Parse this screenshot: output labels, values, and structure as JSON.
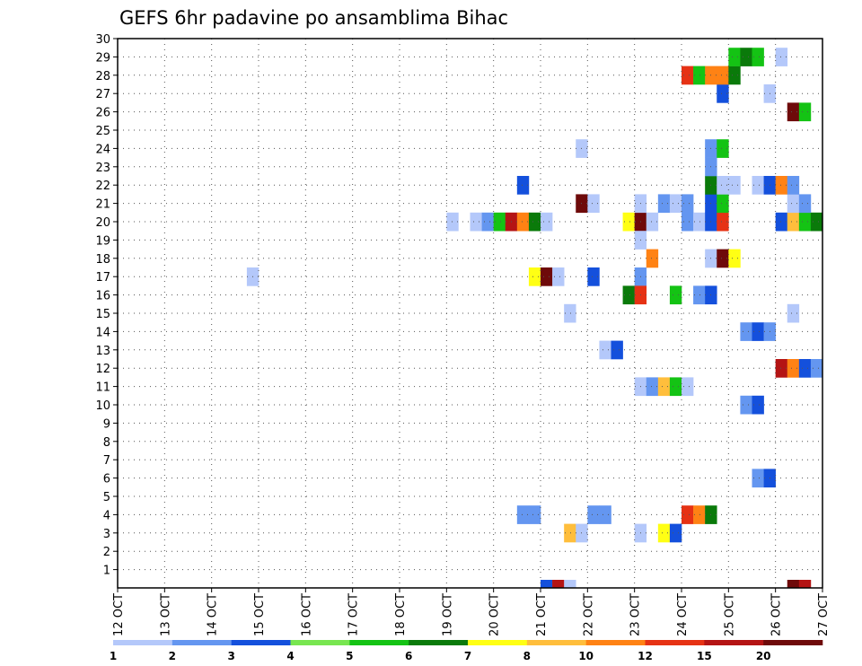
{
  "chart_data": {
    "type": "heatmap",
    "title": "GEFS 6hr padavine po ansamblima Bihac",
    "xlabel": "",
    "ylabel": "",
    "x_ticks": [
      "12 OCT",
      "13 OCT",
      "14 OCT",
      "15 OCT",
      "16 OCT",
      "17 OCT",
      "18 OCT",
      "19 OCT",
      "20 OCT",
      "21 OCT",
      "22 OCT",
      "23 OCT",
      "24 OCT",
      "25 OCT",
      "26 OCT",
      "27 OCT"
    ],
    "y_ticks": [
      1,
      2,
      3,
      4,
      5,
      6,
      7,
      8,
      9,
      10,
      11,
      12,
      13,
      14,
      15,
      16,
      17,
      18,
      19,
      20,
      21,
      22,
      23,
      24,
      25,
      26,
      27,
      28,
      29,
      30
    ],
    "x_unit": "6h steps from 12 OCT 00Z",
    "xlim": [
      0,
      60
    ],
    "ylim": [
      0,
      30
    ],
    "grid": true,
    "colorbar": {
      "labels": [
        "1",
        "2",
        "3",
        "4",
        "5",
        "6",
        "7",
        "8",
        "10",
        "12",
        "15",
        "20"
      ],
      "colors": [
        "#b4c8fa",
        "#6496f0",
        "#1450dc",
        "#78e650",
        "#14c314",
        "#0a7a0a",
        "#ffff14",
        "#ffbe3c",
        "#ff8214",
        "#e63214",
        "#b41414",
        "#6e0a0a"
      ]
    },
    "cells": [
      {
        "x": 11,
        "y": 17,
        "v": 1
      },
      {
        "x": 28,
        "y": 20,
        "v": 1
      },
      {
        "x": 30,
        "y": 20,
        "v": 1
      },
      {
        "x": 31,
        "y": 20,
        "v": 2
      },
      {
        "x": 32,
        "y": 20,
        "v": 5
      },
      {
        "x": 33,
        "y": 20,
        "v": 15
      },
      {
        "x": 34,
        "y": 20,
        "v": 10
      },
      {
        "x": 35,
        "y": 20,
        "v": 6
      },
      {
        "x": 36,
        "y": 20,
        "v": 1
      },
      {
        "x": 43,
        "y": 20,
        "v": 7
      },
      {
        "x": 44,
        "y": 20,
        "v": 20
      },
      {
        "x": 45,
        "y": 20,
        "v": 1
      },
      {
        "x": 48,
        "y": 20,
        "v": 2
      },
      {
        "x": 49,
        "y": 20,
        "v": 1
      },
      {
        "x": 50,
        "y": 20,
        "v": 3
      },
      {
        "x": 51,
        "y": 20,
        "v": 12
      },
      {
        "x": 56,
        "y": 20,
        "v": 3
      },
      {
        "x": 57,
        "y": 20,
        "v": 8
      },
      {
        "x": 58,
        "y": 20,
        "v": 5
      },
      {
        "x": 59,
        "y": 20,
        "v": 6
      },
      {
        "x": 35,
        "y": 17,
        "v": 7
      },
      {
        "x": 36,
        "y": 17,
        "v": 20
      },
      {
        "x": 37,
        "y": 17,
        "v": 1
      },
      {
        "x": 40,
        "y": 17,
        "v": 3
      },
      {
        "x": 44,
        "y": 17,
        "v": 2
      },
      {
        "x": 38,
        "y": 15,
        "v": 1
      },
      {
        "x": 43,
        "y": 16,
        "v": 6
      },
      {
        "x": 44,
        "y": 16,
        "v": 12
      },
      {
        "x": 47,
        "y": 16,
        "v": 5
      },
      {
        "x": 49,
        "y": 16,
        "v": 2
      },
      {
        "x": 50,
        "y": 16,
        "v": 3
      },
      {
        "x": 57,
        "y": 15,
        "v": 1
      },
      {
        "x": 44,
        "y": 19,
        "v": 1
      },
      {
        "x": 45,
        "y": 18,
        "v": 10
      },
      {
        "x": 50,
        "y": 18,
        "v": 1
      },
      {
        "x": 51,
        "y": 18,
        "v": 20
      },
      {
        "x": 52,
        "y": 18,
        "v": 7
      },
      {
        "x": 39,
        "y": 21,
        "v": 20
      },
      {
        "x": 40,
        "y": 21,
        "v": 1
      },
      {
        "x": 44,
        "y": 21,
        "v": 1
      },
      {
        "x": 46,
        "y": 21,
        "v": 2
      },
      {
        "x": 47,
        "y": 21,
        "v": 1
      },
      {
        "x": 48,
        "y": 21,
        "v": 2
      },
      {
        "x": 50,
        "y": 21,
        "v": 3
      },
      {
        "x": 51,
        "y": 21,
        "v": 5
      },
      {
        "x": 57,
        "y": 21,
        "v": 1
      },
      {
        "x": 58,
        "y": 21,
        "v": 2
      },
      {
        "x": 34,
        "y": 22,
        "v": 3
      },
      {
        "x": 50,
        "y": 22,
        "v": 6
      },
      {
        "x": 51,
        "y": 22,
        "v": 1
      },
      {
        "x": 52,
        "y": 22,
        "v": 1
      },
      {
        "x": 54,
        "y": 22,
        "v": 1
      },
      {
        "x": 55,
        "y": 22,
        "v": 3
      },
      {
        "x": 56,
        "y": 22,
        "v": 10
      },
      {
        "x": 57,
        "y": 22,
        "v": 2
      },
      {
        "x": 39,
        "y": 24,
        "v": 1
      },
      {
        "x": 50,
        "y": 23,
        "v": 2
      },
      {
        "x": 50,
        "y": 24,
        "v": 2
      },
      {
        "x": 51,
        "y": 24,
        "v": 5
      },
      {
        "x": 57,
        "y": 26,
        "v": 20
      },
      {
        "x": 58,
        "y": 26,
        "v": 5
      },
      {
        "x": 51,
        "y": 27,
        "v": 3
      },
      {
        "x": 55,
        "y": 27,
        "v": 1
      },
      {
        "x": 48,
        "y": 28,
        "v": 12
      },
      {
        "x": 49,
        "y": 28,
        "v": 5
      },
      {
        "x": 50,
        "y": 28,
        "v": 10
      },
      {
        "x": 51,
        "y": 28,
        "v": 10
      },
      {
        "x": 52,
        "y": 28,
        "v": 6
      },
      {
        "x": 52,
        "y": 29,
        "v": 5
      },
      {
        "x": 53,
        "y": 29,
        "v": 6
      },
      {
        "x": 54,
        "y": 29,
        "v": 5
      },
      {
        "x": 56,
        "y": 29,
        "v": 1
      },
      {
        "x": 41,
        "y": 13,
        "v": 1
      },
      {
        "x": 42,
        "y": 13,
        "v": 3
      },
      {
        "x": 44,
        "y": 11,
        "v": 1
      },
      {
        "x": 45,
        "y": 11,
        "v": 2
      },
      {
        "x": 46,
        "y": 11,
        "v": 8
      },
      {
        "x": 47,
        "y": 11,
        "v": 5
      },
      {
        "x": 48,
        "y": 11,
        "v": 1
      },
      {
        "x": 56,
        "y": 12,
        "v": 15
      },
      {
        "x": 57,
        "y": 12,
        "v": 10
      },
      {
        "x": 58,
        "y": 12,
        "v": 3
      },
      {
        "x": 59,
        "y": 12,
        "v": 2
      },
      {
        "x": 53,
        "y": 14,
        "v": 2
      },
      {
        "x": 54,
        "y": 14,
        "v": 3
      },
      {
        "x": 55,
        "y": 14,
        "v": 2
      },
      {
        "x": 53,
        "y": 10,
        "v": 2
      },
      {
        "x": 54,
        "y": 10,
        "v": 3
      },
      {
        "x": 54,
        "y": 6,
        "v": 2
      },
      {
        "x": 55,
        "y": 6,
        "v": 3
      },
      {
        "x": 34,
        "y": 4,
        "v": 2
      },
      {
        "x": 35,
        "y": 4,
        "v": 2
      },
      {
        "x": 40,
        "y": 4,
        "v": 2
      },
      {
        "x": 41,
        "y": 4,
        "v": 2
      },
      {
        "x": 48,
        "y": 4,
        "v": 12
      },
      {
        "x": 49,
        "y": 4,
        "v": 10
      },
      {
        "x": 50,
        "y": 4,
        "v": 6
      },
      {
        "x": 38,
        "y": 3,
        "v": 8
      },
      {
        "x": 39,
        "y": 3,
        "v": 1
      },
      {
        "x": 44,
        "y": 3,
        "v": 1
      },
      {
        "x": 46,
        "y": 3,
        "v": 7
      },
      {
        "x": 47,
        "y": 3,
        "v": 3
      },
      {
        "x": 36,
        "y": -1,
        "v": 3
      },
      {
        "x": 37,
        "y": -1,
        "v": 15
      },
      {
        "x": 38,
        "y": -1,
        "v": 1
      },
      {
        "x": 57,
        "y": -1,
        "v": 20
      },
      {
        "x": 58,
        "y": -1,
        "v": 15
      }
    ]
  }
}
